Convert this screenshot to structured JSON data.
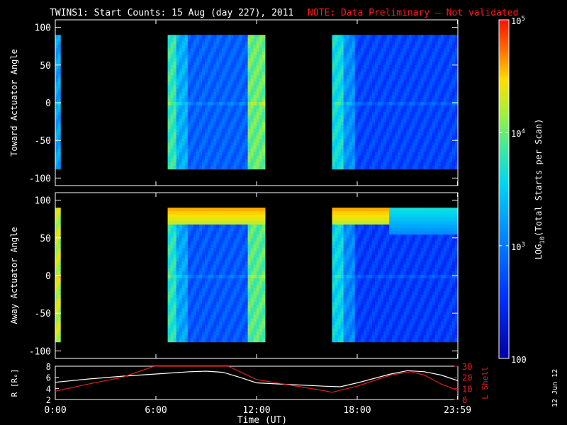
{
  "title": {
    "main": "TWINS1: Start Counts: 15 Aug (day 227), 2011",
    "note": "NOTE: Data Preliminary – Not validated"
  },
  "stamp": "12 Jun 12",
  "colors": {
    "background": "#000000",
    "axes": "#ffffff",
    "note": "#ff1a1a",
    "lshell": "#e0201c",
    "r": "#ffffff"
  },
  "chart_data": [
    {
      "type": "heatmap",
      "panel": "toward",
      "ylabel": "Toward Actuator Angle",
      "xlim": [
        0,
        24
      ],
      "ylim": [
        -110,
        110
      ],
      "yticks": [
        100,
        50,
        0,
        -50,
        -100
      ],
      "data_y_range": [
        -88,
        90
      ],
      "segments": [
        {
          "x": [
            0.0,
            0.3
          ],
          "level": 0.42,
          "note": "narrow column at 0:00"
        },
        {
          "x": [
            6.7,
            12.5
          ],
          "level": 0.28
        },
        {
          "x": [
            16.5,
            24.0
          ],
          "level": 0.22
        }
      ]
    },
    {
      "type": "heatmap",
      "panel": "away",
      "ylabel": "Away Actuator Angle",
      "xlim": [
        0,
        24
      ],
      "ylim": [
        -110,
        110
      ],
      "yticks": [
        100,
        50,
        0,
        -50,
        -100
      ],
      "data_y_range": [
        -88,
        90
      ],
      "segments": [
        {
          "x": [
            0.0,
            0.3
          ],
          "level": 0.75
        },
        {
          "x": [
            6.7,
            12.5
          ],
          "level": 0.26
        },
        {
          "x": [
            16.5,
            24.0
          ],
          "level": 0.2
        }
      ]
    },
    {
      "type": "line",
      "panel": "orbit",
      "xlabel": "Time (UT)",
      "xlim": [
        0,
        24
      ],
      "xtick_labels": [
        "0:00",
        "6:00",
        "12:00",
        "18:00",
        "23:59"
      ],
      "xtick_values": [
        0,
        6,
        12,
        18,
        23.98
      ],
      "ylabel_left": "R [Rₑ]",
      "ylim_left": [
        2,
        8
      ],
      "yticks_left": [
        "8",
        "6",
        "4",
        "2"
      ],
      "ylabel_right": "L Shell",
      "ylim_right": [
        0,
        30
      ],
      "yticks_right": [
        "30",
        "20",
        "10",
        "0"
      ],
      "series": [
        {
          "name": "R",
          "axis": "left",
          "x": [
            0,
            2,
            4,
            6,
            8,
            9,
            10,
            11,
            12,
            14,
            16,
            17,
            18,
            20,
            21,
            22,
            23,
            24
          ],
          "y": [
            5.1,
            5.7,
            6.2,
            6.6,
            7.0,
            7.1,
            6.9,
            6.0,
            5.0,
            4.7,
            4.4,
            4.3,
            5.0,
            6.6,
            7.2,
            7.0,
            6.4,
            5.4
          ]
        },
        {
          "name": "L Shell",
          "axis": "right",
          "x": [
            0,
            2,
            4,
            5.9,
            10.3,
            12,
            14,
            16,
            16.5,
            18,
            20,
            21.2,
            22,
            23,
            24
          ],
          "y": [
            7.5,
            14,
            20,
            30,
            30,
            18,
            13,
            8,
            6.5,
            12,
            22,
            25,
            22,
            14,
            8
          ]
        }
      ]
    }
  ],
  "colorbar": {
    "label_prefix": "LOG",
    "label_sub": "10",
    "label_suffix": "(Total Starts per Scan)",
    "ticks": [
      {
        "base": "10",
        "exp": "5",
        "frac": 0.0
      },
      {
        "base": "10",
        "exp": "4",
        "frac": 0.333
      },
      {
        "base": "10",
        "exp": "3",
        "frac": 0.667
      },
      {
        "base": "100",
        "exp": "",
        "frac": 1.0
      }
    ]
  }
}
